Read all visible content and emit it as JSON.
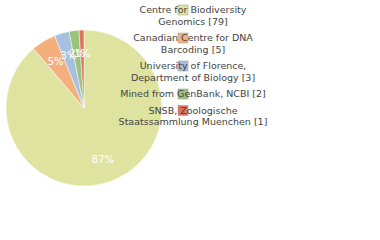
{
  "chart_data": {
    "type": "pie",
    "categories": [
      "Centre for Biodiversity\nGenomics [79]",
      "Canadian Centre for DNA\nBarcoding [5]",
      "University of Florence,\nDepartment of Biology [3]",
      "Mined from GenBank, NCBI [2]",
      "SNSB, Zoologische\nStaatssammlung Muenchen [1]"
    ],
    "values": [
      87,
      5,
      3,
      2,
      1
    ],
    "value_labels": [
      "87%",
      "5%",
      "3%",
      "2%",
      "1%"
    ],
    "colors": [
      "#dfe3a0",
      "#f3b07c",
      "#a7c0e0",
      "#9bc27a",
      "#e0725e"
    ],
    "data_labels": true,
    "legend": "right"
  }
}
